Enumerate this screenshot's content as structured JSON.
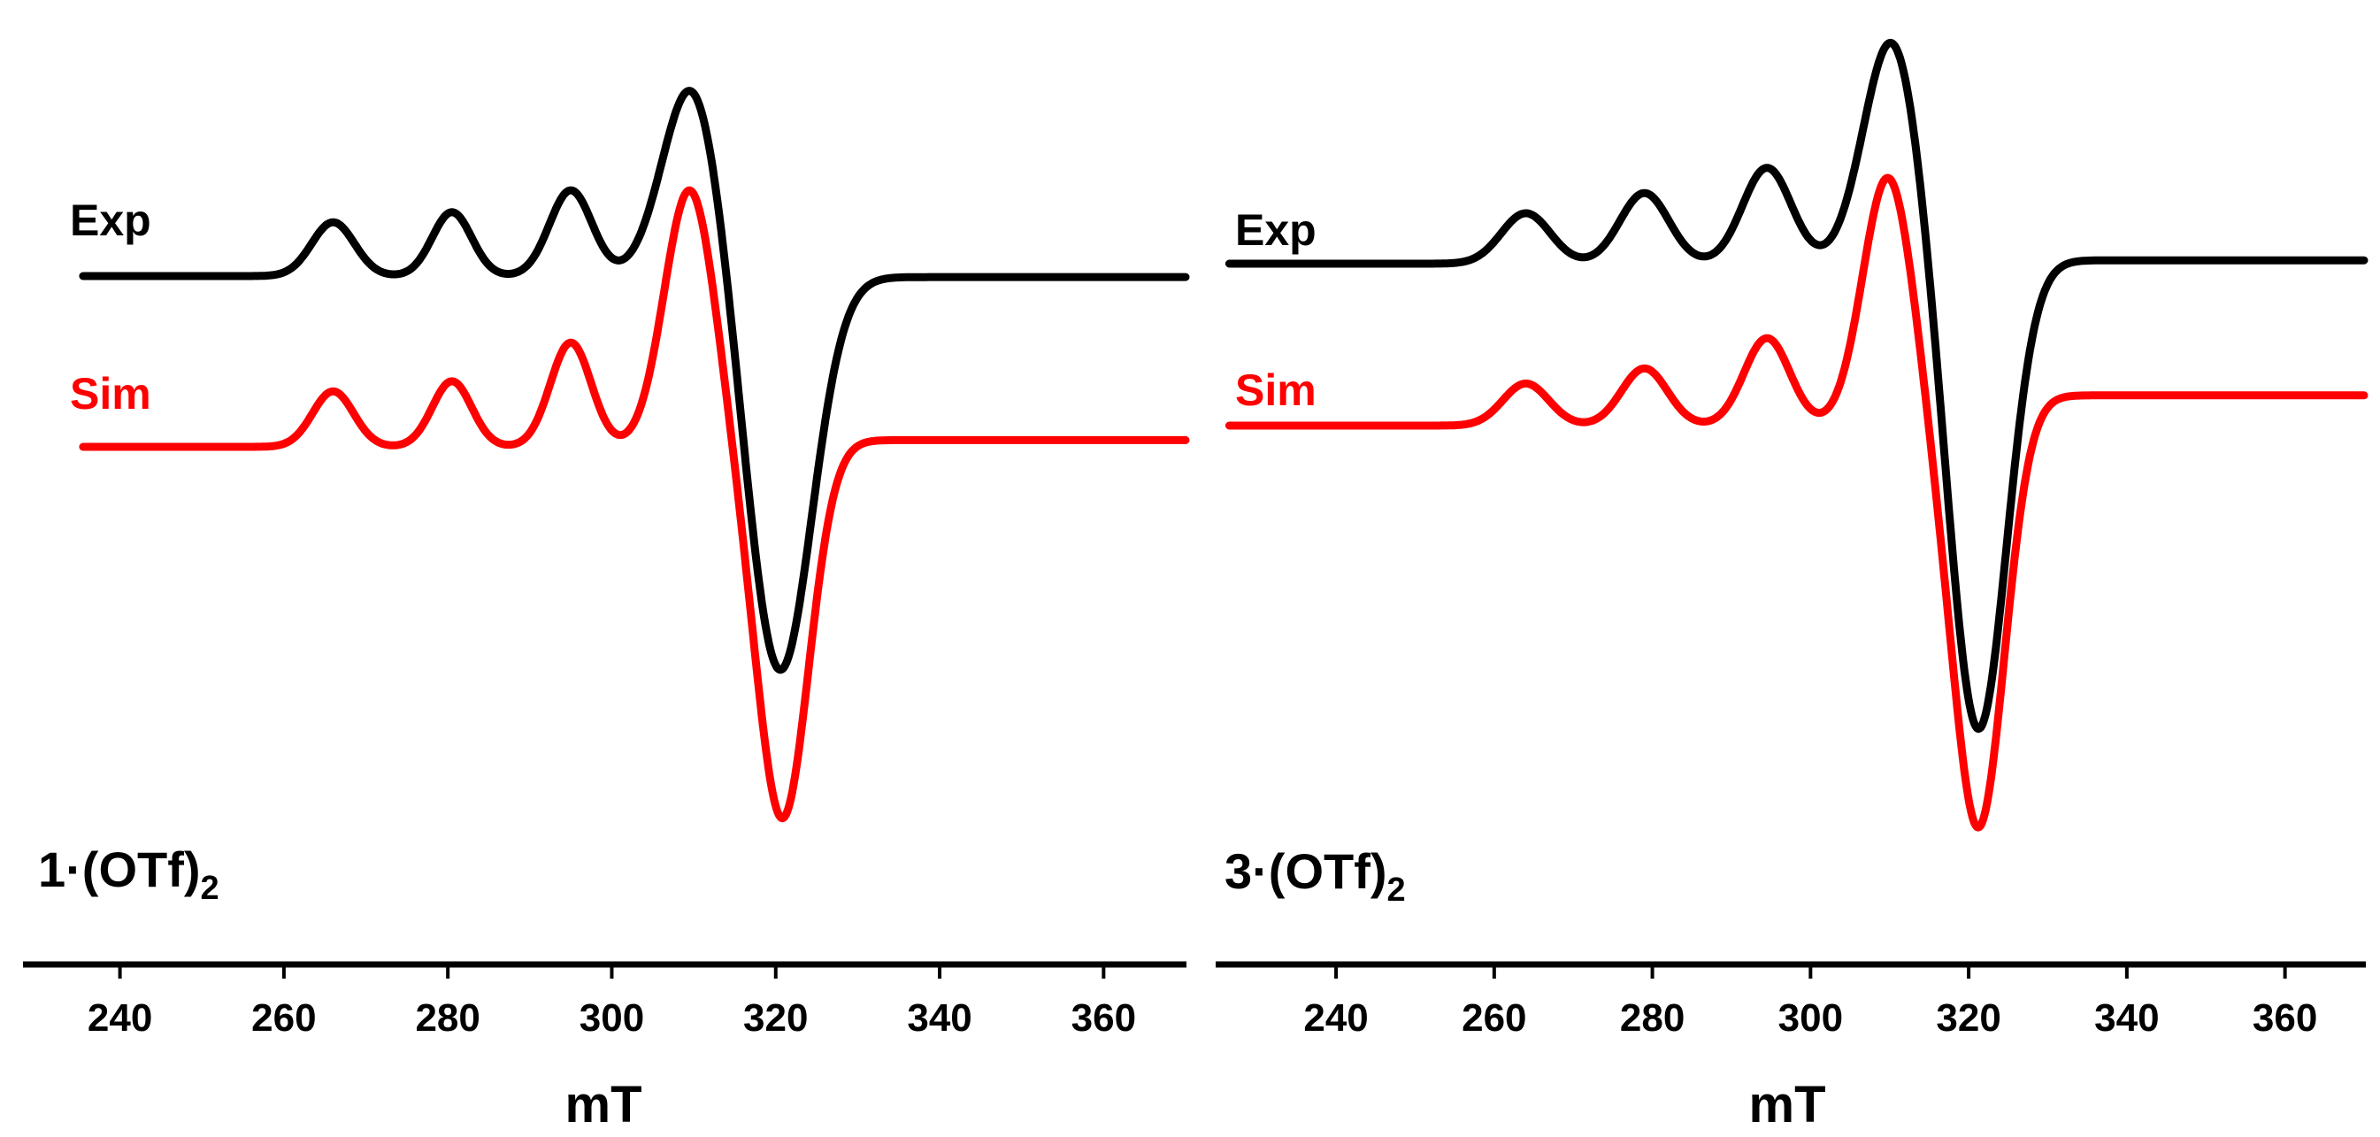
{
  "colors": {
    "experimental": "#000000",
    "simulated": "#ff0000",
    "axis": "#000000",
    "background": "#ffffff"
  },
  "chart_data": [
    {
      "type": "line",
      "panel": "left",
      "compound": {
        "main": "1·(OTf)",
        "subscript": "2"
      },
      "xlabel": "mT",
      "ylabel": "",
      "xlim": [
        234,
        370
      ],
      "xticks": [
        240,
        260,
        280,
        300,
        320,
        340,
        360
      ],
      "tick_labels": [
        "240",
        "260",
        "280",
        "300",
        "320",
        "340",
        "360"
      ],
      "ylim": [
        -1.0,
        2.2
      ],
      "grid": false,
      "series": [
        {
          "name": "Exp",
          "label": "Exp",
          "color": "#000000",
          "baseline": 1.0,
          "tail": -0.006,
          "peaks": [
            {
              "x": 266,
              "a": 0.32,
              "w": 2.6
            },
            {
              "x": 280.5,
              "a": 0.38,
              "w": 2.4
            },
            {
              "x": 295,
              "a": 0.51,
              "w": 2.6
            },
            {
              "x": 309.8,
              "a": 1.15,
              "w": 3.6
            }
          ],
          "trough": {
            "x": 320.5,
            "a": -2.35,
            "w": 3.9
          },
          "step": {
            "x": 317,
            "drop": 1.25,
            "k": 1.0
          }
        },
        {
          "name": "Sim",
          "label": "Sim",
          "color": "#ff0000",
          "baseline": 0.0,
          "tail": 0.04,
          "peaks": [
            {
              "x": 266,
              "a": 0.33,
              "w": 2.5
            },
            {
              "x": 280.5,
              "a": 0.39,
              "w": 2.4
            },
            {
              "x": 295,
              "a": 0.62,
              "w": 2.5
            },
            {
              "x": 309.5,
              "a": 1.53,
              "w": 3.1
            }
          ],
          "trough": {
            "x": 320.8,
            "a": -2.25,
            "w": 3.2
          },
          "step": {
            "x": 317,
            "drop": 0.28,
            "k": 1.0
          }
        }
      ]
    },
    {
      "type": "line",
      "panel": "right",
      "compound": {
        "main": "3·(OTf)",
        "subscript": "2"
      },
      "xlabel": "mT",
      "ylabel": "",
      "xlim": [
        225,
        370
      ],
      "xticks": [
        240,
        260,
        280,
        300,
        320,
        340,
        360
      ],
      "tick_labels": [
        "240",
        "260",
        "280",
        "300",
        "320",
        "340",
        "360"
      ],
      "ylim": [
        -1.0,
        2.2
      ],
      "grid": false,
      "series": [
        {
          "name": "Exp",
          "label": "Exp",
          "color": "#000000",
          "baseline": 1.0,
          "tail": 0.02,
          "peaks": [
            {
              "x": 264,
              "a": 0.3,
              "w": 3.1
            },
            {
              "x": 279,
              "a": 0.42,
              "w": 3.1
            },
            {
              "x": 294.5,
              "a": 0.57,
              "w": 3.1
            },
            {
              "x": 310.3,
              "a": 1.34,
              "w": 3.6
            }
          ],
          "trough": {
            "x": 321.2,
            "a": -2.8,
            "w": 3.6
          },
          "step": {
            "x": 317,
            "drop": 1.3,
            "k": 1.0
          }
        },
        {
          "name": "Sim",
          "label": "Sim",
          "color": "#ff0000",
          "baseline": 0.0,
          "tail": 0.18,
          "peaks": [
            {
              "x": 264,
              "a": 0.25,
              "w": 2.9
            },
            {
              "x": 279,
              "a": 0.34,
              "w": 2.9
            },
            {
              "x": 294.5,
              "a": 0.52,
              "w": 2.9
            },
            {
              "x": 309.8,
              "a": 1.48,
              "w": 3.2
            }
          ],
          "trough": {
            "x": 321.2,
            "a": -2.57,
            "w": 3.3
          },
          "step": {
            "x": 317,
            "drop": 0.27,
            "k": 1.0
          }
        }
      ]
    }
  ]
}
